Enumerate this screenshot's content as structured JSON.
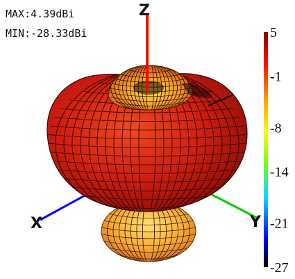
{
  "chart_data": {
    "type": "3d-radiation-pattern",
    "max_label": "MAX:4.39dBi",
    "min_label": "MIN:-28.33dBi",
    "max_gain_dbi": 4.39,
    "min_gain_dbi": -28.33,
    "colorbar": {
      "range": [
        -27,
        5
      ],
      "ticks": [
        5,
        -1,
        -8,
        -14,
        -21,
        -27
      ],
      "tick_labels": [
        "5",
        "-1",
        "-8",
        "-14",
        "-21",
        "-27"
      ],
      "colors": [
        "#000000",
        "#0000ff",
        "#00e0ff",
        "#80ff00",
        "#ffff00",
        "#ff9900",
        "#ff0000",
        "#800000"
      ]
    },
    "axes": {
      "z_label": "Z",
      "x_label": "X",
      "y_label": "Y",
      "z_color": "#ff0000",
      "x_color": "#0000ff",
      "y_color": "#00cc00"
    }
  }
}
